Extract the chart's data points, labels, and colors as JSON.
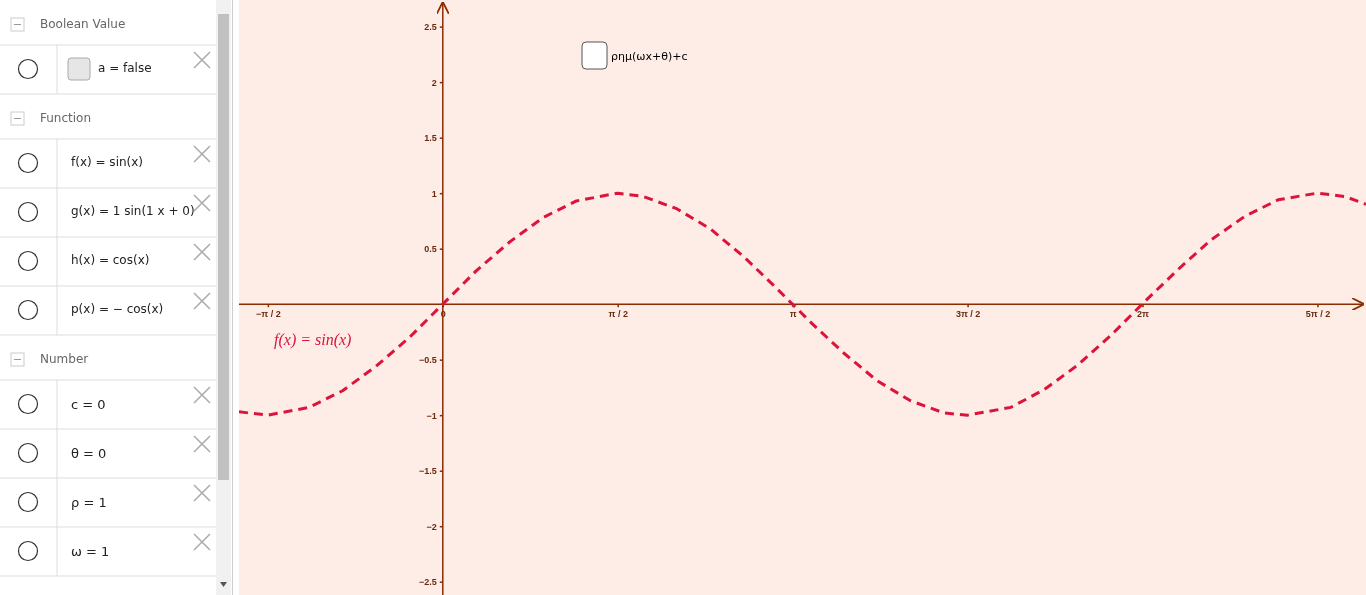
{
  "chart_data": [
    {
      "type": "line",
      "xlim": [
        -1.83,
        8.29
      ],
      "ylim": [
        -2.62,
        2.74
      ],
      "xticks": [
        {
          "value": -1.5708,
          "label": "−π / 2"
        },
        {
          "value": 0,
          "label": "0"
        },
        {
          "value": 1.5708,
          "label": "π / 2"
        },
        {
          "value": 3.1416,
          "label": "π"
        },
        {
          "value": 4.7124,
          "label": "3π / 2"
        },
        {
          "value": 6.2832,
          "label": "2π"
        },
        {
          "value": 7.854,
          "label": "5π / 2"
        }
      ],
      "yticks": [
        {
          "value": -2.5,
          "label": "−2.5"
        },
        {
          "value": -2,
          "label": "−2"
        },
        {
          "value": -1.5,
          "label": "−1.5"
        },
        {
          "value": -1,
          "label": "−1"
        },
        {
          "value": -0.5,
          "label": "−0.5"
        },
        0.5,
        1,
        1.5,
        2,
        2.5
      ],
      "grid": false,
      "line_style": "dashed",
      "marker": "none",
      "annotations": [
        "ρημ(ωx+θ)+c"
      ],
      "x": [
        -1.83,
        -1.57,
        -1.2,
        -0.9,
        -0.6,
        -0.3,
        0,
        0.3,
        0.6,
        0.9,
        1.2,
        1.57,
        1.8,
        2.1,
        2.4,
        2.7,
        3.0,
        3.3,
        3.6,
        3.9,
        4.2,
        4.5,
        4.71,
        5.1,
        5.4,
        5.7,
        6.0,
        6.3,
        6.6,
        6.9,
        7.2,
        7.5,
        7.85,
        8.1,
        8.29
      ],
      "series": [
        {
          "name": "f(x) = sin(x)",
          "color": "#dc143c",
          "values": [
            -0.97,
            -1.0,
            -0.93,
            -0.78,
            -0.56,
            -0.3,
            0,
            0.3,
            0.56,
            0.78,
            0.93,
            1.0,
            0.97,
            0.86,
            0.68,
            0.43,
            0.14,
            -0.16,
            -0.44,
            -0.69,
            -0.87,
            -0.98,
            -1.0,
            -0.93,
            -0.77,
            -0.55,
            -0.28,
            0.02,
            0.31,
            0.58,
            0.79,
            0.94,
            1.0,
            0.97,
            0.9
          ]
        }
      ]
    },
    {
      "type": "other",
      "annotations": [
        "Boolean Value",
        "a = false",
        "Function",
        "f(x) = sin(x)",
        "g(x) = 1 sin(1 x + 0)",
        "h(x) = cos(x)",
        "p(x) = − cos(x)",
        "Number",
        "c = 0",
        "θ = 0",
        "ρ = 1",
        "ω = 1"
      ]
    }
  ]
}
